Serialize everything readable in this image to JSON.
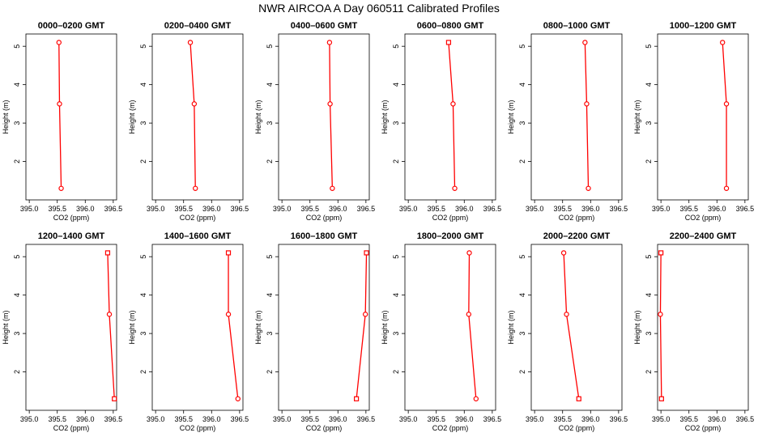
{
  "title": "NWR AIRCOA A  Day 060511  Calibrated Profiles",
  "colors": {
    "series": "#ff0000",
    "frame": "#000000"
  },
  "chart_data": [
    {
      "type": "line",
      "title": "0000–0200 GMT",
      "xlabel": "CO2 (ppm)",
      "ylabel": "Height (m)",
      "xlim": [
        395.0,
        396.5
      ],
      "ylim": [
        1.0,
        5.2
      ],
      "xticks": [
        "395.0",
        "395.5",
        "396.0",
        "396.5"
      ],
      "yticks": [
        "2",
        "3",
        "4",
        "5"
      ],
      "grid": false,
      "series": [
        {
          "points": [
            {
              "x": 395.53,
              "y": 5.1,
              "marker": "circle"
            },
            {
              "x": 395.54,
              "y": 3.5,
              "marker": "circle"
            },
            {
              "x": 395.57,
              "y": 1.3,
              "marker": "circle"
            }
          ]
        }
      ]
    },
    {
      "type": "line",
      "title": "0200–0400 GMT",
      "xlabel": "CO2 (ppm)",
      "ylabel": "Height (m)",
      "xlim": [
        395.0,
        396.5
      ],
      "ylim": [
        1.0,
        5.2
      ],
      "xticks": [
        "395.0",
        "395.5",
        "396.0",
        "396.5"
      ],
      "yticks": [
        "2",
        "3",
        "4",
        "5"
      ],
      "grid": false,
      "series": [
        {
          "points": [
            {
              "x": 395.62,
              "y": 5.1,
              "marker": "circle"
            },
            {
              "x": 395.69,
              "y": 3.5,
              "marker": "circle"
            },
            {
              "x": 395.71,
              "y": 1.3,
              "marker": "circle"
            }
          ]
        }
      ]
    },
    {
      "type": "line",
      "title": "0400–0600 GMT",
      "xlabel": "CO2 (ppm)",
      "ylabel": "Height (m)",
      "xlim": [
        395.0,
        396.5
      ],
      "ylim": [
        1.0,
        5.2
      ],
      "xticks": [
        "395.0",
        "395.5",
        "396.0",
        "396.5"
      ],
      "yticks": [
        "2",
        "3",
        "4",
        "5"
      ],
      "grid": false,
      "series": [
        {
          "points": [
            {
              "x": 395.85,
              "y": 5.1,
              "marker": "circle"
            },
            {
              "x": 395.86,
              "y": 3.5,
              "marker": "circle"
            },
            {
              "x": 395.9,
              "y": 1.3,
              "marker": "circle"
            }
          ]
        }
      ]
    },
    {
      "type": "line",
      "title": "0600–0800 GMT",
      "xlabel": "CO2 (ppm)",
      "ylabel": "Height (m)",
      "xlim": [
        395.0,
        396.5
      ],
      "ylim": [
        1.0,
        5.2
      ],
      "xticks": [
        "395.0",
        "395.5",
        "396.0",
        "396.5"
      ],
      "yticks": [
        "2",
        "3",
        "4",
        "5"
      ],
      "grid": false,
      "series": [
        {
          "points": [
            {
              "x": 395.72,
              "y": 5.1,
              "marker": "square"
            },
            {
              "x": 395.8,
              "y": 3.5,
              "marker": "circle"
            },
            {
              "x": 395.83,
              "y": 1.3,
              "marker": "circle"
            }
          ]
        }
      ]
    },
    {
      "type": "line",
      "title": "0800–1000 GMT",
      "xlabel": "CO2 (ppm)",
      "ylabel": "Height (m)",
      "xlim": [
        395.0,
        396.5
      ],
      "ylim": [
        1.0,
        5.2
      ],
      "xticks": [
        "395.0",
        "395.5",
        "396.0",
        "396.5"
      ],
      "yticks": [
        "2",
        "3",
        "4",
        "5"
      ],
      "grid": false,
      "series": [
        {
          "points": [
            {
              "x": 395.9,
              "y": 5.1,
              "marker": "circle"
            },
            {
              "x": 395.93,
              "y": 3.5,
              "marker": "circle"
            },
            {
              "x": 395.96,
              "y": 1.3,
              "marker": "circle"
            }
          ]
        }
      ]
    },
    {
      "type": "line",
      "title": "1000–1200 GMT",
      "xlabel": "CO2 (ppm)",
      "ylabel": "Height (m)",
      "xlim": [
        395.0,
        396.5
      ],
      "ylim": [
        1.0,
        5.2
      ],
      "xticks": [
        "395.0",
        "395.5",
        "396.0",
        "396.5"
      ],
      "yticks": [
        "2",
        "3",
        "4",
        "5"
      ],
      "grid": false,
      "series": [
        {
          "points": [
            {
              "x": 396.1,
              "y": 5.1,
              "marker": "circle"
            },
            {
              "x": 396.17,
              "y": 3.5,
              "marker": "circle"
            },
            {
              "x": 396.17,
              "y": 1.3,
              "marker": "circle"
            }
          ]
        }
      ]
    },
    {
      "type": "line",
      "title": "1200–1400 GMT",
      "xlabel": "CO2 (ppm)",
      "ylabel": "Height (m)",
      "xlim": [
        395.0,
        396.5
      ],
      "ylim": [
        1.0,
        5.2
      ],
      "xticks": [
        "395.0",
        "395.5",
        "396.0",
        "396.5"
      ],
      "yticks": [
        "2",
        "3",
        "4",
        "5"
      ],
      "grid": false,
      "series": [
        {
          "points": [
            {
              "x": 396.4,
              "y": 5.1,
              "marker": "square"
            },
            {
              "x": 396.43,
              "y": 3.5,
              "marker": "circle"
            },
            {
              "x": 396.52,
              "y": 1.3,
              "marker": "square"
            }
          ]
        }
      ]
    },
    {
      "type": "line",
      "title": "1400–1600 GMT",
      "xlabel": "CO2 (ppm)",
      "ylabel": "Height (m)",
      "xlim": [
        395.0,
        396.5
      ],
      "ylim": [
        1.0,
        5.2
      ],
      "xticks": [
        "395.0",
        "395.5",
        "396.0",
        "396.5"
      ],
      "yticks": [
        "2",
        "3",
        "4",
        "5"
      ],
      "grid": false,
      "series": [
        {
          "points": [
            {
              "x": 396.3,
              "y": 5.1,
              "marker": "square"
            },
            {
              "x": 396.3,
              "y": 3.5,
              "marker": "circle"
            },
            {
              "x": 396.47,
              "y": 1.3,
              "marker": "circle"
            }
          ]
        }
      ]
    },
    {
      "type": "line",
      "title": "1600–1800 GMT",
      "xlabel": "CO2 (ppm)",
      "ylabel": "Height (m)",
      "xlim": [
        395.0,
        396.5
      ],
      "ylim": [
        1.0,
        5.2
      ],
      "xticks": [
        "395.0",
        "395.5",
        "396.0",
        "396.5"
      ],
      "yticks": [
        "2",
        "3",
        "4",
        "5"
      ],
      "grid": false,
      "series": [
        {
          "points": [
            {
              "x": 396.51,
              "y": 5.1,
              "marker": "square"
            },
            {
              "x": 396.49,
              "y": 3.5,
              "marker": "circle"
            },
            {
              "x": 396.33,
              "y": 1.3,
              "marker": "square"
            }
          ]
        }
      ]
    },
    {
      "type": "line",
      "title": "1800–2000 GMT",
      "xlabel": "CO2 (ppm)",
      "ylabel": "Height (m)",
      "xlim": [
        395.0,
        396.5
      ],
      "ylim": [
        1.0,
        5.2
      ],
      "xticks": [
        "395.0",
        "395.5",
        "396.0",
        "396.5"
      ],
      "yticks": [
        "2",
        "3",
        "4",
        "5"
      ],
      "grid": false,
      "series": [
        {
          "points": [
            {
              "x": 396.09,
              "y": 5.1,
              "marker": "circle"
            },
            {
              "x": 396.08,
              "y": 3.5,
              "marker": "circle"
            },
            {
              "x": 396.21,
              "y": 1.3,
              "marker": "circle"
            }
          ]
        }
      ]
    },
    {
      "type": "line",
      "title": "2000–2200 GMT",
      "xlabel": "CO2 (ppm)",
      "ylabel": "Height (m)",
      "xlim": [
        395.0,
        396.5
      ],
      "ylim": [
        1.0,
        5.2
      ],
      "xticks": [
        "395.0",
        "395.5",
        "396.0",
        "396.5"
      ],
      "yticks": [
        "2",
        "3",
        "4",
        "5"
      ],
      "grid": false,
      "series": [
        {
          "points": [
            {
              "x": 395.52,
              "y": 5.1,
              "marker": "circle"
            },
            {
              "x": 395.57,
              "y": 3.5,
              "marker": "circle"
            },
            {
              "x": 395.79,
              "y": 1.3,
              "marker": "square"
            }
          ]
        }
      ]
    },
    {
      "type": "line",
      "title": "2200–2400 GMT",
      "xlabel": "CO2 (ppm)",
      "ylabel": "Height (m)",
      "xlim": [
        395.0,
        396.5
      ],
      "ylim": [
        1.0,
        5.2
      ],
      "xticks": [
        "395.0",
        "395.5",
        "396.0",
        "396.5"
      ],
      "yticks": [
        "2",
        "3",
        "4",
        "5"
      ],
      "grid": false,
      "series": [
        {
          "points": [
            {
              "x": 395.0,
              "y": 5.1,
              "marker": "square"
            },
            {
              "x": 394.99,
              "y": 3.5,
              "marker": "circle"
            },
            {
              "x": 395.01,
              "y": 1.3,
              "marker": "square"
            }
          ]
        }
      ]
    }
  ]
}
